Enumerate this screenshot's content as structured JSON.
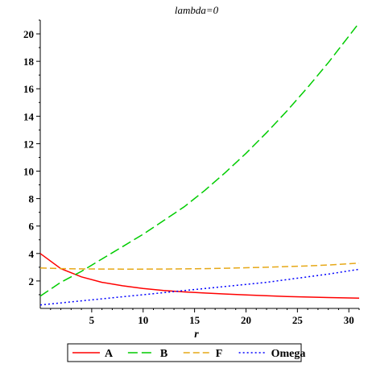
{
  "chart_data": {
    "type": "line",
    "title": "lambda=0",
    "xlabel": "r",
    "ylabel": "",
    "xlim": [
      0,
      31
    ],
    "ylim": [
      0,
      21
    ],
    "x_ticks": [
      5,
      10,
      15,
      20,
      25,
      30
    ],
    "y_ticks": [
      2,
      4,
      6,
      8,
      10,
      12,
      14,
      16,
      18,
      20
    ],
    "grid": false,
    "legend_position": "bottom",
    "x": [
      0,
      2,
      4,
      6,
      8,
      10,
      12,
      14,
      16,
      18,
      20,
      22,
      24,
      26,
      28,
      31
    ],
    "series": [
      {
        "name": "A",
        "color": "#ff0000",
        "dash": "solid",
        "values": [
          4.0,
          2.9,
          2.3,
          1.9,
          1.65,
          1.45,
          1.3,
          1.2,
          1.12,
          1.05,
          0.98,
          0.92,
          0.87,
          0.83,
          0.79,
          0.75
        ]
      },
      {
        "name": "B",
        "color": "#00cc00",
        "dash": "long-dash",
        "values": [
          0.9,
          1.9,
          2.7,
          3.6,
          4.5,
          5.4,
          6.4,
          7.4,
          8.6,
          9.9,
          11.3,
          12.8,
          14.4,
          16.1,
          17.9,
          20.8
        ]
      },
      {
        "name": "F",
        "color": "#e6a817",
        "dash": "dash",
        "values": [
          2.95,
          2.9,
          2.88,
          2.87,
          2.86,
          2.86,
          2.87,
          2.88,
          2.9,
          2.93,
          2.96,
          3.0,
          3.05,
          3.1,
          3.16,
          3.3
        ]
      },
      {
        "name": "Omega",
        "color": "#0000ff",
        "dash": "dot",
        "values": [
          0.25,
          0.4,
          0.55,
          0.7,
          0.85,
          1.0,
          1.15,
          1.3,
          1.45,
          1.6,
          1.75,
          1.9,
          2.1,
          2.3,
          2.5,
          2.85
        ]
      }
    ]
  }
}
